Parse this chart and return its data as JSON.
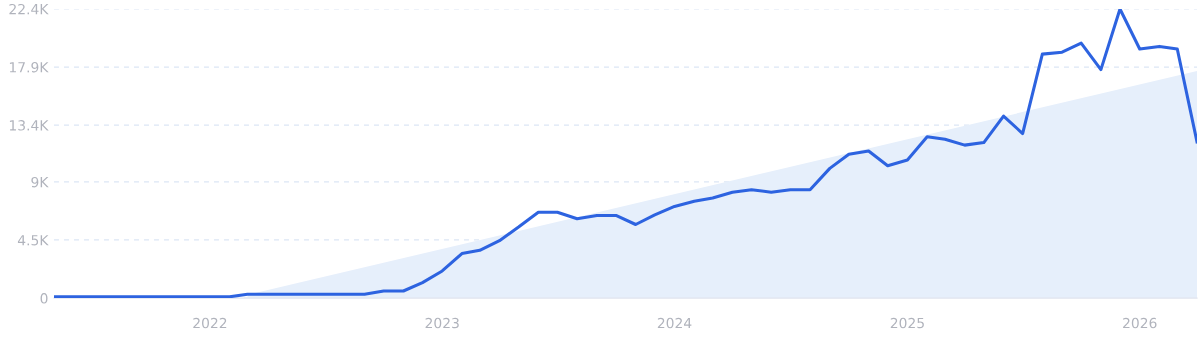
{
  "chart_data": {
    "type": "line",
    "x": [
      "2021-05",
      "2021-06",
      "2021-07",
      "2021-08",
      "2021-09",
      "2021-10",
      "2021-11",
      "2021-12",
      "2022-01",
      "2022-02",
      "2022-03",
      "2022-04",
      "2022-05",
      "2022-06",
      "2022-07",
      "2022-08",
      "2022-09",
      "2022-10",
      "2022-11",
      "2022-12",
      "2023-01",
      "2023-02",
      "2023-03",
      "2023-04",
      "2023-05",
      "2023-06",
      "2023-07",
      "2023-08",
      "2023-09",
      "2023-10",
      "2023-11",
      "2023-12",
      "2024-01",
      "2024-02",
      "2024-03",
      "2024-04",
      "2024-05",
      "2024-06",
      "2024-07",
      "2024-08",
      "2024-09",
      "2024-10",
      "2024-11",
      "2024-12",
      "2025-01",
      "2025-02",
      "2025-03",
      "2025-04",
      "2025-05",
      "2025-06",
      "2025-07",
      "2025-08",
      "2025-09",
      "2025-10",
      "2025-11",
      "2025-12",
      "2026-01",
      "2026-02",
      "2026-03",
      "2026-04"
    ],
    "series": [
      {
        "type": "area",
        "color": "#e6effb",
        "x": [
          "2022-03",
          "2026-04"
        ],
        "values": [
          250,
          17600
        ]
      },
      {
        "color": "#2d63e0",
        "values": [
          100,
          100,
          100,
          100,
          100,
          100,
          100,
          100,
          100,
          100,
          300,
          300,
          300,
          300,
          300,
          300,
          300,
          550,
          550,
          1200,
          2100,
          3450,
          3700,
          4450,
          5500,
          6650,
          6650,
          6150,
          6400,
          6400,
          5700,
          6450,
          7100,
          7500,
          7750,
          8200,
          8400,
          8200,
          8400,
          8400,
          10050,
          11150,
          11400,
          10250,
          10700,
          12500,
          12300,
          11850,
          12050,
          14100,
          12750,
          18900,
          19050,
          19750,
          17700,
          22400,
          19300,
          19500,
          19300,
          12100
        ]
      }
    ],
    "xlim": [
      "2021-05",
      "2026-04"
    ],
    "xticks": [
      {
        "value": "2022",
        "label": "2022"
      },
      {
        "value": "2023",
        "label": "2023"
      },
      {
        "value": "2024",
        "label": "2024"
      },
      {
        "value": "2025",
        "label": "2025"
      },
      {
        "value": "2026",
        "label": "2026"
      }
    ],
    "ylim": [
      0,
      22400
    ],
    "yticks": [
      {
        "value": 0,
        "label": "0"
      },
      {
        "value": 4500,
        "label": "4.5K"
      },
      {
        "value": 9000,
        "label": "9K"
      },
      {
        "value": 13400,
        "label": "13.4K"
      },
      {
        "value": 17900,
        "label": "17.9K"
      },
      {
        "value": 22400,
        "label": "22.4K"
      }
    ],
    "grid": "y",
    "line_style": "solid",
    "marker": "none"
  }
}
